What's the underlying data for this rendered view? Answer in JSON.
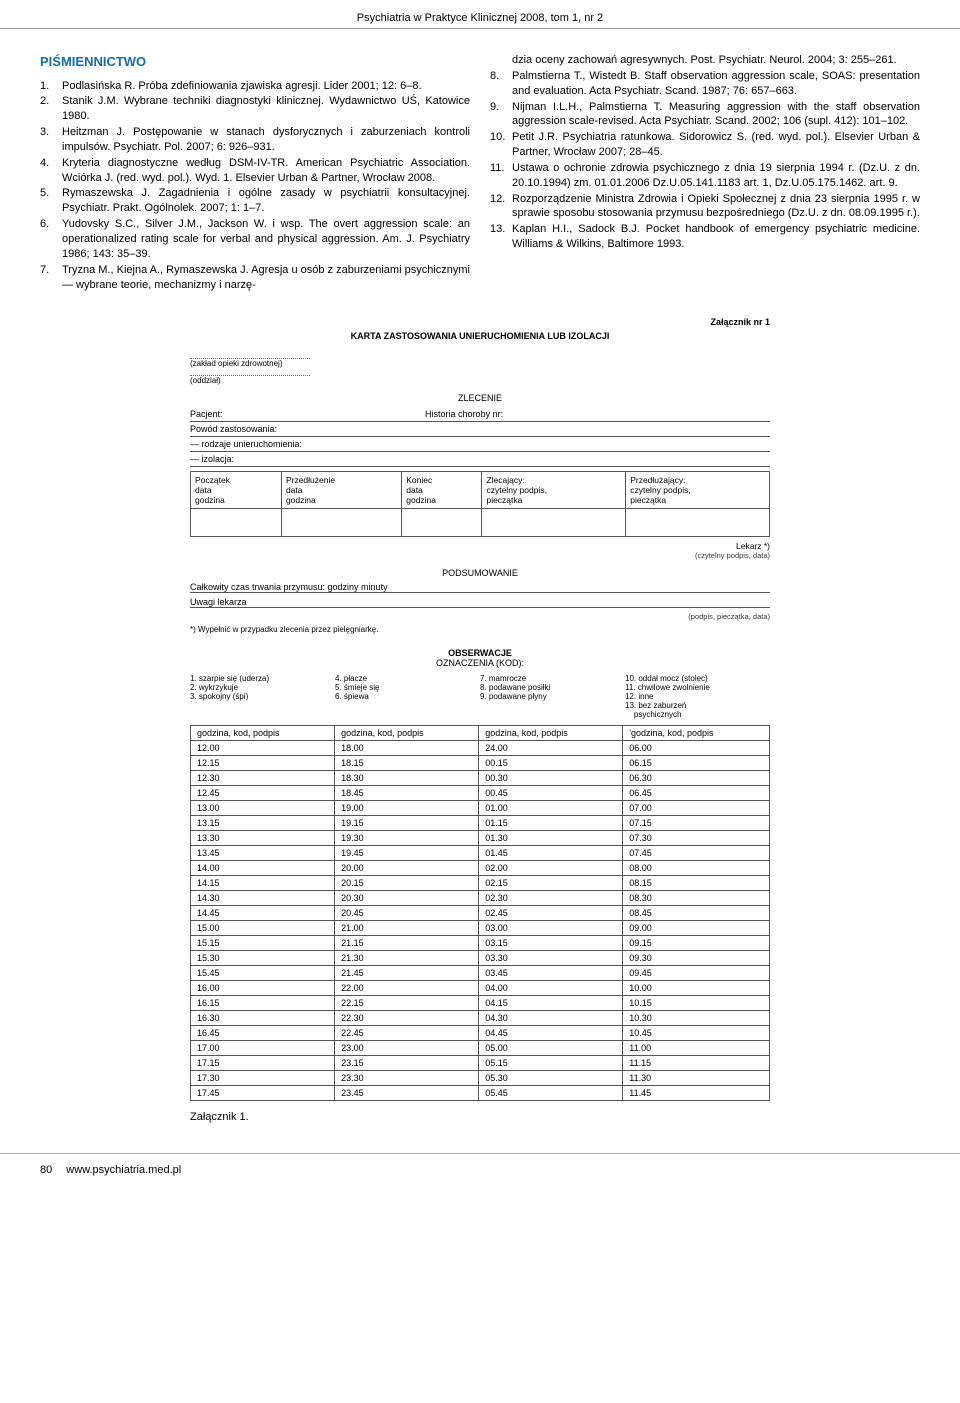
{
  "header": "Psychiatria w Praktyce Klinicznej 2008, tom 1, nr 2",
  "section_title": "PIŚMIENNICTWO",
  "refs_left": [
    {
      "n": "1.",
      "t": "Podlasińska R. Próba zdefiniowania zjawiska agresji. Lider 2001; 12: 6–8."
    },
    {
      "n": "2.",
      "t": "Stanik J.M. Wybrane techniki diagnostyki klinicznej. Wydawnictwo UŚ, Katowice 1980."
    },
    {
      "n": "3.",
      "t": "Heitzman J. Postępowanie w stanach dysforycznych i zaburzeniach kontroli impulsów. Psychiatr. Pol. 2007; 6: 926–931."
    },
    {
      "n": "4.",
      "t": "Kryteria diagnostyczne według DSM-IV-TR. American Psychiatric Association. Wciórka J. (red. wyd. pol.). Wyd. 1. Elsevier Urban & Partner, Wrocław 2008."
    },
    {
      "n": "5.",
      "t": "Rymaszewska J. Zagadnienia i ogólne zasady w psychiatrii konsultacyjnej. Psychiatr. Prakt. Ogólnolek. 2007; 1: 1–7."
    },
    {
      "n": "6.",
      "t": "Yudovsky S.C., Silver J.M., Jackson W. i wsp. The overt aggression scale: an operationalized rating scale for verbal and physical aggression. Am. J. Psychiatry 1986; 143: 35–39."
    },
    {
      "n": "7.",
      "t": "Tryzna M., Kiejna A., Rymaszewska J. Agresja u osób z zaburzeniami psychicznymi — wybrane teorie, mechanizmy i narzę-"
    }
  ],
  "refs_right": [
    {
      "n": "",
      "t": "dzia oceny zachowań agresywnych. Post. Psychiatr. Neurol. 2004; 3: 255–261."
    },
    {
      "n": "8.",
      "t": "Palmstierna T., Wistedt B. Staff observation aggression scale, SOAS: presentation and evaluation. Acta Psychiatr. Scand. 1987; 76: 657–663."
    },
    {
      "n": "9.",
      "t": "Nijman I.L.H., Palmstierna T. Measuring aggression with the staff observation aggression scale-revised. Acta Psychiatr. Scand. 2002; 106 (supl. 412): 101–102."
    },
    {
      "n": "10.",
      "t": "Petit J.R. Psychiatria ratunkowa. Sidorowicz S. (red. wyd. pol.). Elsevier Urban & Partner, Wrocław 2007; 28–45."
    },
    {
      "n": "11.",
      "t": "Ustawa o ochronie zdrowia psychicznego z dnia 19 sierpnia 1994 r. (Dz.U. z dn. 20.10.1994) zm. 01.01.2006 Dz.U.05.141.1183 art. 1, Dz.U.05.175.1462. art. 9."
    },
    {
      "n": "12.",
      "t": "Rozporządzenie Ministra Zdrowia i Opieki Społecznej z dnia 23 sierpnia 1995 r. w sprawie sposobu stosowania przymusu bezpośredniego (Dz.U. z dn. 08.09.1995 r.)."
    },
    {
      "n": "13.",
      "t": "Kaplan H.I., Sadock B.J. Pocket handbook of emergency psychiatric medicine. Williams & Wilkins, Baltimore 1993."
    }
  ],
  "appendix": {
    "zn": "Załącznik nr 1",
    "title": "KARTA ZASTOSOWANIA UNIERUCHOMIENIA LUB IZOLACJI",
    "zaklad": "(zakład opieki zdrowotnej)",
    "oddzial": "(oddział)",
    "zlecenie": "ZLECENIE",
    "pacjent": "Pacjent:",
    "historia": "Historia choroby nr:",
    "powod": "Powód zastosowania:",
    "rodzaje": "— rodzaje unieruchomienia:",
    "izolacja": "— izolacja:",
    "desc_headers": [
      "Początek\ndata\ngodzina",
      "Przedłużenie\ndata\ngodzina",
      "Koniec\ndata\ngodzina",
      "Zlecający:\nczytelny podpis,\npieczątka",
      "Przedłużający:\nczytelny podpis,\npieczątka"
    ],
    "lekarz": "Lekarz *)",
    "lekarz_sub": "(czytelny podpis, data)",
    "podsumowanie": "PODSUMOWANIE",
    "czas": "Całkowity czas trwania przymusu:          godziny                    minuty",
    "uwagi": "Uwagi lekarza",
    "uwagi_sub": "(podpis, pieczątka, data)",
    "footnote": "*) Wypełnić w przypadku zlecenia przez pielęgniarkę.",
    "obs_title": "OBSERWACJE",
    "obs_sub": "OZNACZENIA (KOD):",
    "legend": [
      [
        "1. szarpie się (uderza)",
        "2. wykrzykuje",
        "3. spokojny (śpi)"
      ],
      [
        "4. płacze",
        "5. śmieje się",
        "6. śpiewa"
      ],
      [
        "7. mamrocze",
        "8. podawane posiłki",
        "9. podawane płyny"
      ],
      [
        "10. oddał mocz (stolec)",
        "11. chwilowe zwolnienie",
        "12. inne",
        "13. bez zaburzeń\n    psychicznych"
      ]
    ],
    "obs_header": [
      "godzina, kod, podpis",
      "godzina, kod, podpis",
      "godzina, kod, podpis",
      "'godzina, kod, podpis"
    ],
    "obs_rows": [
      [
        "12.00",
        "18.00",
        "24.00",
        "06.00"
      ],
      [
        "12.15",
        "18.15",
        "00.15",
        "06.15"
      ],
      [
        "12.30",
        "18.30",
        "00.30",
        "06.30"
      ],
      [
        "12.45",
        "18.45",
        "00.45",
        "06.45"
      ],
      [
        "13.00",
        "19.00",
        "01.00",
        "07.00"
      ],
      [
        "13.15",
        "19.15",
        "01.15",
        "07.15"
      ],
      [
        "13.30",
        "19.30",
        "01.30",
        "07.30"
      ],
      [
        "13.45",
        "19.45",
        "01.45",
        "07.45"
      ],
      [
        "14.00",
        "20.00",
        "02.00",
        "08.00"
      ],
      [
        "14.15",
        "20.15",
        "02.15",
        "08.15"
      ],
      [
        "14.30",
        "20.30",
        "02.30",
        "08.30"
      ],
      [
        "14.45",
        "20.45",
        "02.45",
        "08.45"
      ],
      [
        "15.00",
        "21.00",
        "03.00",
        "09.00"
      ],
      [
        "15.15",
        "21.15",
        "03.15",
        "09.15"
      ],
      [
        "15.30",
        "21.30",
        "03.30",
        "09.30"
      ],
      [
        "15.45",
        "21.45",
        "03.45",
        "09.45"
      ],
      [
        "16.00",
        "22.00",
        "04.00",
        "10.00"
      ],
      [
        "16.15",
        "22.15",
        "04.15",
        "10.15"
      ],
      [
        "16.30",
        "22.30",
        "04.30",
        "10.30"
      ],
      [
        "16.45",
        "22.45",
        "04.45",
        "10.45"
      ],
      [
        "17.00",
        "23.00",
        "05.00",
        "11.00"
      ],
      [
        "17.15",
        "23.15",
        "05.15",
        "11.15"
      ],
      [
        "17.30",
        "23.30",
        "05.30",
        "11.30"
      ],
      [
        "17.45",
        "23.45",
        "05.45",
        "11.45"
      ]
    ]
  },
  "caption": "Załącznik 1.",
  "footer": {
    "page": "80",
    "url": "www.psychiatria.med.pl"
  }
}
